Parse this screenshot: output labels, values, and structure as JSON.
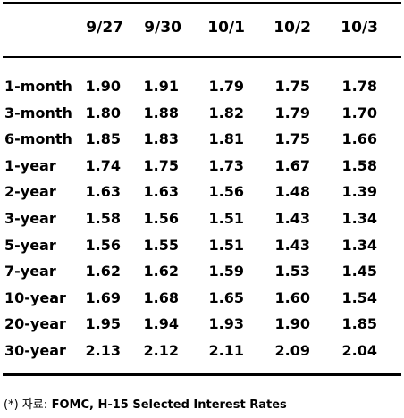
{
  "table": {
    "columns": [
      "",
      "9/27",
      "9/30",
      "10/1",
      "10/2",
      "10/3"
    ],
    "rows": [
      {
        "label": "1-month",
        "values": [
          "1.90",
          "1.91",
          "1.79",
          "1.75",
          "1.78"
        ]
      },
      {
        "label": "3-month",
        "values": [
          "1.80",
          "1.88",
          "1.82",
          "1.79",
          "1.70"
        ]
      },
      {
        "label": "6-month",
        "values": [
          "1.85",
          "1.83",
          "1.81",
          "1.75",
          "1.66"
        ]
      },
      {
        "label": "1-year",
        "values": [
          "1.74",
          "1.75",
          "1.73",
          "1.67",
          "1.58"
        ]
      },
      {
        "label": "2-year",
        "values": [
          "1.63",
          "1.63",
          "1.56",
          "1.48",
          "1.39"
        ]
      },
      {
        "label": "3-year",
        "values": [
          "1.58",
          "1.56",
          "1.51",
          "1.43",
          "1.34"
        ]
      },
      {
        "label": "5-year",
        "values": [
          "1.56",
          "1.55",
          "1.51",
          "1.43",
          "1.34"
        ]
      },
      {
        "label": "7-year",
        "values": [
          "1.62",
          "1.62",
          "1.59",
          "1.53",
          "1.45"
        ]
      },
      {
        "label": "10-year",
        "values": [
          "1.69",
          "1.68",
          "1.65",
          "1.60",
          "1.54"
        ]
      },
      {
        "label": "20-year",
        "values": [
          "1.95",
          "1.94",
          "1.93",
          "1.90",
          "1.85"
        ]
      },
      {
        "label": "30-year",
        "values": [
          "2.13",
          "2.12",
          "2.11",
          "2.09",
          "2.04"
        ]
      }
    ]
  },
  "source": {
    "prefix": "(*) 자료:",
    "text": "FOMC, H-15 Selected Interest Rates"
  }
}
